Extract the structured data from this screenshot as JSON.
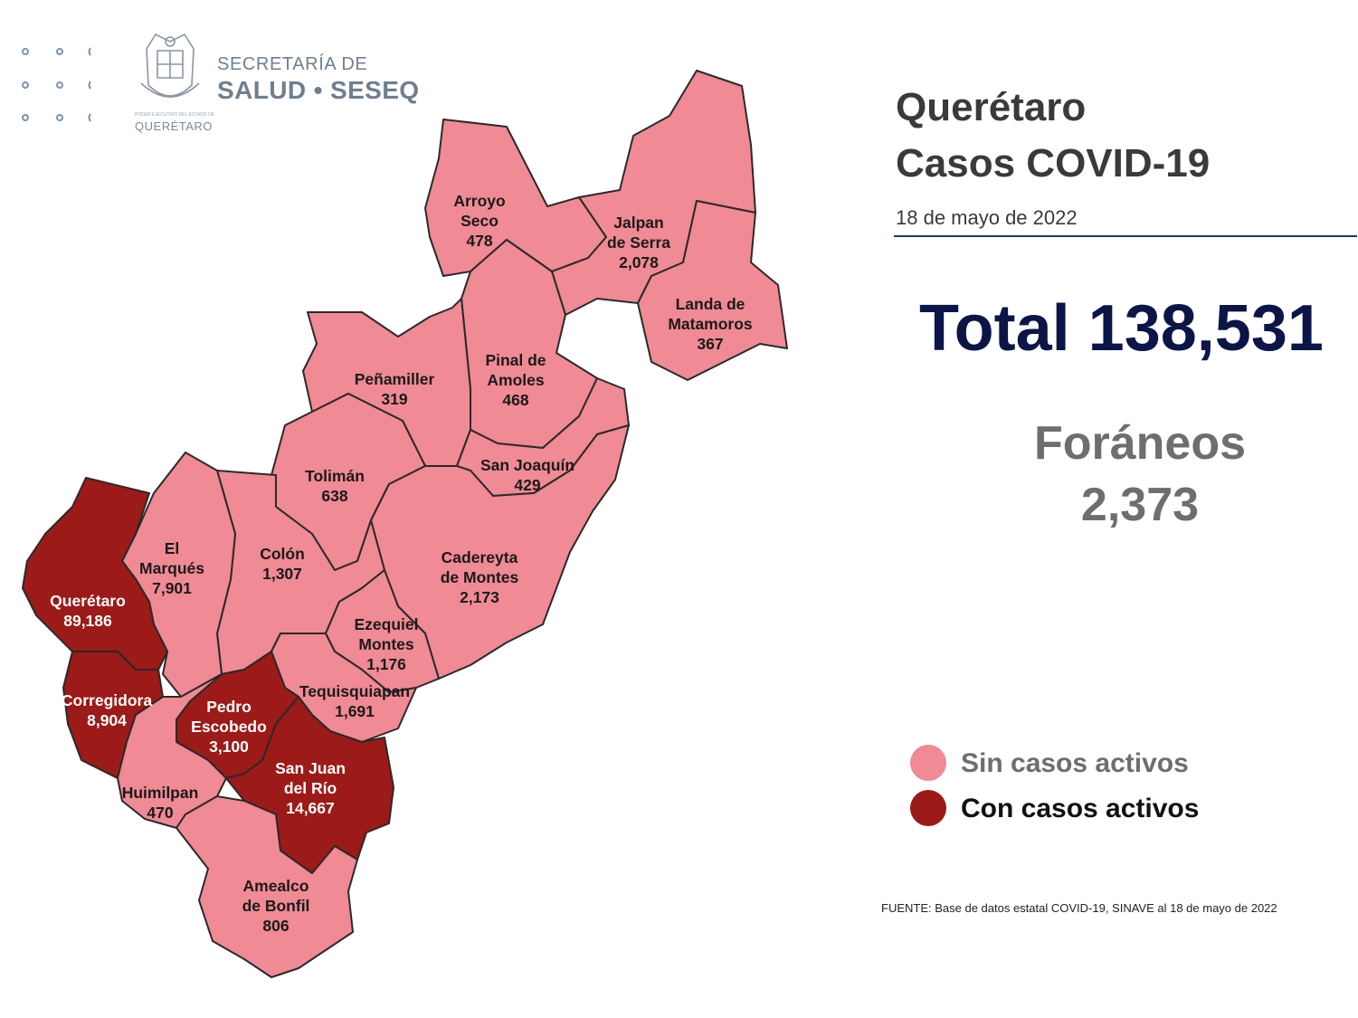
{
  "header": {
    "logo_tagline": "PODER EJECUTIVO DEL ESTADO DE",
    "logo_state": "QUERÉTARO",
    "org_line1": "SECRETARÍA DE",
    "org_line2": "SALUD • SESEQ"
  },
  "title": {
    "line1": "Querétaro",
    "line2": "Casos COVID-19"
  },
  "date": "18 de mayo de 2022",
  "total": "Total 138,531",
  "foraneos": {
    "label": "Foráneos",
    "value": "2,373"
  },
  "legend": [
    {
      "label": "Sin casos activos",
      "color": "#f08a94",
      "text_color": "#6e6e6e"
    },
    {
      "label": "Con casos activos",
      "color": "#9c1a18",
      "text_color": "#111111"
    }
  ],
  "source": "FUENTE: Base de datos estatal COVID-19, SINAVE al 18 de mayo de 2022",
  "colors": {
    "sin": "#f08a94",
    "con": "#9c1a18",
    "border": "#2a2a2a"
  },
  "municipalities": [
    {
      "id": "arroyo-seco",
      "lines": [
        "Arroyo",
        "Seco"
      ],
      "cases": "478",
      "active": false
    },
    {
      "id": "jalpan",
      "lines": [
        "Jalpan",
        "de Serra"
      ],
      "cases": "2,078",
      "active": false
    },
    {
      "id": "landa",
      "lines": [
        "Landa de",
        "Matamoros"
      ],
      "cases": "367",
      "active": false
    },
    {
      "id": "pinal",
      "lines": [
        "Pinal de",
        "Amoles"
      ],
      "cases": "468",
      "active": false
    },
    {
      "id": "penamiller",
      "lines": [
        "Peñamiller"
      ],
      "cases": "319",
      "active": false
    },
    {
      "id": "san-joaquin",
      "lines": [
        "San Joaquín"
      ],
      "cases": "429",
      "active": false
    },
    {
      "id": "toliman",
      "lines": [
        "Tolimán"
      ],
      "cases": "638",
      "active": false
    },
    {
      "id": "cadereyta",
      "lines": [
        "Cadereyta",
        "de Montes"
      ],
      "cases": "2,173",
      "active": false
    },
    {
      "id": "colon",
      "lines": [
        "Colón"
      ],
      "cases": "1,307",
      "active": false
    },
    {
      "id": "el-marques",
      "lines": [
        "El",
        "Marqués"
      ],
      "cases": "7,901",
      "active": false
    },
    {
      "id": "queretaro",
      "lines": [
        "Querétaro"
      ],
      "cases": "89,186",
      "active": true
    },
    {
      "id": "ezequiel",
      "lines": [
        "Ezequiel",
        "Montes"
      ],
      "cases": "1,176",
      "active": false
    },
    {
      "id": "tequisquiapan",
      "lines": [
        "Tequisquiapan"
      ],
      "cases": "1,691",
      "active": false
    },
    {
      "id": "corregidora",
      "lines": [
        "Corregidora"
      ],
      "cases": "8,904",
      "active": true
    },
    {
      "id": "pedro-escobedo",
      "lines": [
        "Pedro",
        "Escobedo"
      ],
      "cases": "3,100",
      "active": true
    },
    {
      "id": "san-juan",
      "lines": [
        "San Juan",
        "del Río"
      ],
      "cases": "14,667",
      "active": true
    },
    {
      "id": "huimilpan",
      "lines": [
        "Huimilpan"
      ],
      "cases": "470",
      "active": false
    },
    {
      "id": "amealco",
      "lines": [
        "Amealco",
        "de Bonfil"
      ],
      "cases": "806",
      "active": false
    }
  ]
}
